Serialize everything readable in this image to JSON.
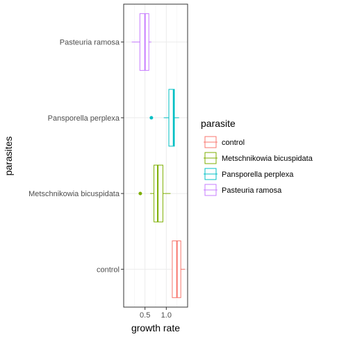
{
  "chart_data": {
    "type": "boxplot",
    "orientation": "horizontal",
    "xlabel": "growth rate",
    "ylabel": "parasites",
    "xlim": [
      0.0,
      1.5
    ],
    "x_ticks": [
      {
        "value": 0.5,
        "label": "0.5"
      },
      {
        "value": 1.0,
        "label": "1.0"
      }
    ],
    "x_minor_ticks": [
      0.25,
      0.75,
      1.25
    ],
    "grid": true,
    "legend": {
      "title": "parasite",
      "position": "right"
    },
    "categories": [
      "control",
      "Metschnikowia bicuspidata",
      "Pansporella perplexa",
      "Pasteuria ramosa"
    ],
    "series": [
      {
        "name": "control",
        "color": "#F8766D",
        "whisker_low": 1.14,
        "q1": 1.14,
        "median": 1.25,
        "q3": 1.34,
        "whisker_high": 1.44,
        "outliers": []
      },
      {
        "name": "Metschnikowia bicuspidata",
        "color": "#7CAE00",
        "whisker_low": 0.62,
        "q1": 0.71,
        "median": 0.8,
        "q3": 0.92,
        "whisker_high": 1.1,
        "outliers": [
          0.39
        ]
      },
      {
        "name": "Pansporella perplexa",
        "color": "#00BFC4",
        "whisker_low": 0.94,
        "q1": 1.06,
        "median": 1.17,
        "q3": 1.19,
        "whisker_high": 1.3,
        "outliers": [
          0.65
        ]
      },
      {
        "name": "Pasteuria ramosa",
        "color": "#C77CFF",
        "whisker_low": 0.19,
        "q1": 0.38,
        "median": 0.5,
        "q3": 0.59,
        "whisker_high": 0.65,
        "outliers": []
      }
    ]
  }
}
